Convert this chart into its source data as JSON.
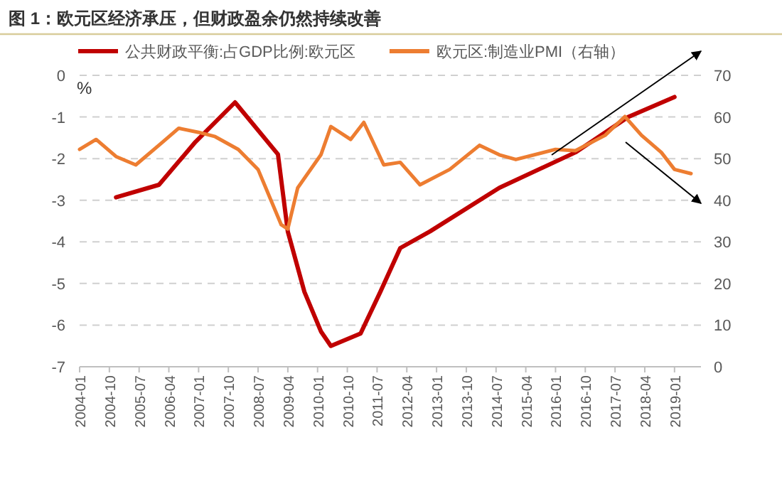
{
  "chart_data": {
    "type": "line",
    "title": "图 1：欧元区经济承压，但财政盈余仍然持续改善",
    "ylabel": "%",
    "xlim": [
      "2004-01",
      "2019-09"
    ],
    "xticks": [
      "2004-01",
      "2004-10",
      "2005-07",
      "2006-04",
      "2007-01",
      "2007-10",
      "2008-07",
      "2009-04",
      "2010-01",
      "2010-10",
      "2011-07",
      "2012-04",
      "2013-01",
      "2013-10",
      "2014-07",
      "2015-04",
      "2016-01",
      "2016-10",
      "2017-07",
      "2018-04",
      "2019-01"
    ],
    "ylim": [
      -7,
      0
    ],
    "yticks": [
      -7,
      -6,
      -5,
      -4,
      -3,
      -2,
      -1,
      0
    ],
    "y2lim": [
      0,
      70
    ],
    "y2ticks": [
      0,
      10,
      20,
      30,
      40,
      50,
      60,
      70
    ],
    "grid": "y",
    "legend": "top",
    "line_style": "solid",
    "marker": "none",
    "series": [
      {
        "name": "公共财政平衡:占GDP比例:欧元区",
        "color": "#c00000",
        "x": [
          "2004-12",
          "2006-01",
          "2006-12",
          "2007-12",
          "2009-01",
          "2009-04",
          "2009-09",
          "2010-02",
          "2010-05",
          "2011-02",
          "2011-08",
          "2012-02",
          "2012-11",
          "2014-08",
          "2016-07",
          "2017-11",
          "2019-01"
        ],
        "values": [
          -2.93,
          -2.63,
          -1.6,
          -0.65,
          -1.9,
          -3.75,
          -5.2,
          -6.15,
          -6.5,
          -6.2,
          -5.2,
          -4.15,
          -3.75,
          -2.7,
          -1.85,
          -1.0,
          -0.52
        ]
      },
      {
        "name": "欧元区:制造业PMI（右轴）",
        "color": "#ed7d31",
        "axis": "y2",
        "x": [
          "2004-01",
          "2004-06",
          "2004-12",
          "2005-06",
          "2006-02",
          "2006-07",
          "2007-01",
          "2007-06",
          "2008-01",
          "2008-07",
          "2009-02",
          "2009-04",
          "2009-07",
          "2010-02",
          "2010-05",
          "2010-11",
          "2011-03",
          "2011-09",
          "2012-02",
          "2012-08",
          "2013-05",
          "2014-02",
          "2014-08",
          "2015-01",
          "2016-01",
          "2016-07",
          "2017-04",
          "2017-10",
          "2018-03",
          "2018-09",
          "2019-01",
          "2019-06"
        ],
        "values": [
          52.2,
          54.6,
          50.5,
          48.5,
          53.9,
          57.3,
          56.3,
          55.3,
          52.2,
          47.4,
          34.1,
          33.1,
          43,
          50.9,
          57.7,
          54.6,
          58.7,
          48.5,
          49.1,
          43.7,
          47.4,
          53.2,
          50.9,
          49.8,
          52.2,
          51.9,
          55.6,
          60.1,
          55.6,
          51.5,
          47.4,
          46.4
        ]
      }
    ]
  }
}
